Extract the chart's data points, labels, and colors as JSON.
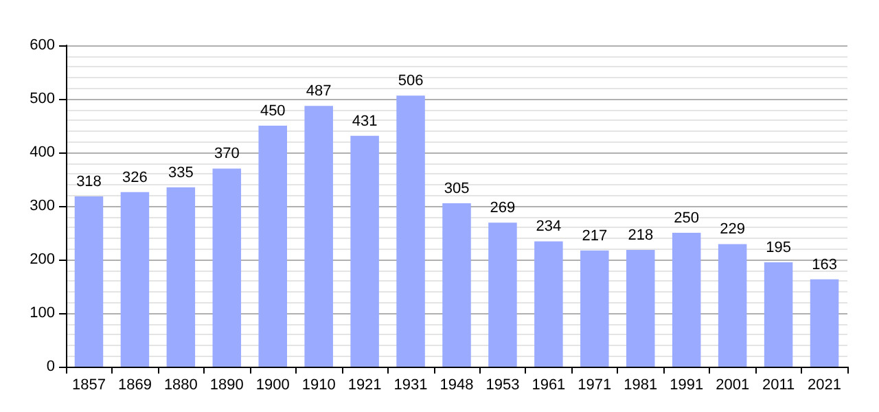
{
  "chart_data": {
    "type": "bar",
    "categories": [
      "1857",
      "1869",
      "1880",
      "1890",
      "1900",
      "1910",
      "1921",
      "1931",
      "1948",
      "1953",
      "1961",
      "1971",
      "1981",
      "1991",
      "2001",
      "2011",
      "2021"
    ],
    "values": [
      318,
      326,
      335,
      370,
      450,
      487,
      431,
      506,
      305,
      269,
      234,
      217,
      218,
      250,
      229,
      195,
      163
    ],
    "color": "#99aaff",
    "ylim": [
      0,
      600
    ],
    "yticks": [
      0,
      100,
      200,
      300,
      400,
      500,
      600
    ],
    "grid": "y",
    "data_labels": true
  }
}
